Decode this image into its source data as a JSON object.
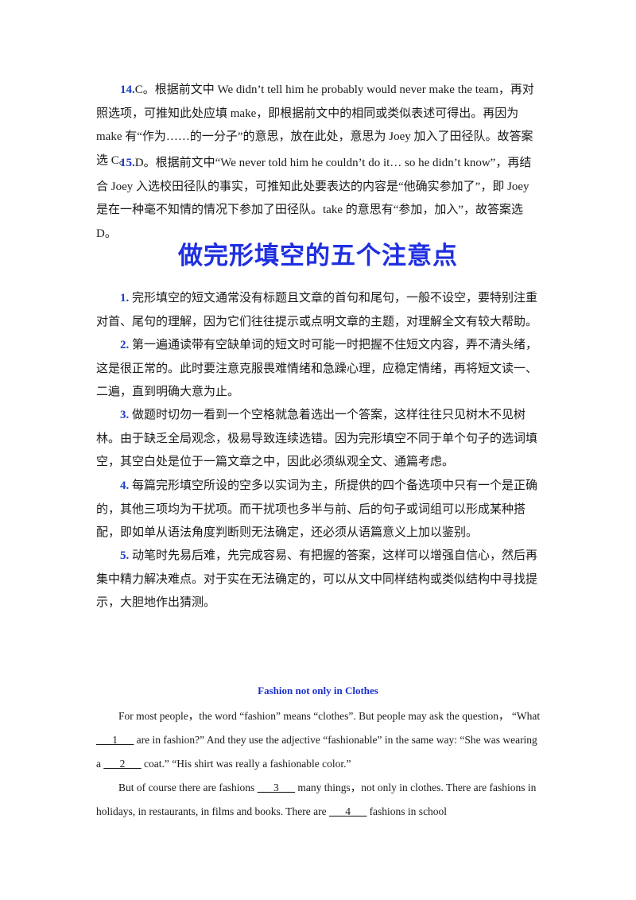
{
  "answers": [
    {
      "num": "14.",
      "text": "C。根据前文中 We didn’t tell him he probably would never make the team，再对照选项，可推知此处应填 make，即根据前文中的相同或类似表述可得出。再因为 make 有“作为……的一分子”的意思，放在此处，意思为 Joey 加入了田径队。故答案选 C。"
    },
    {
      "num": "15.",
      "text": "D。根据前文中“We never told him he couldn’t do it… so he didn’t know”，再结合 Joey 入选校田径队的事实，可推知此处要表达的内容是“他确实参加了”，即 Joey 是在一种毫不知情的情况下参加了田径队。take 的意思有“参加，加入”，故答案选 D。"
    }
  ],
  "heading": "做完形填空的五个注意点",
  "tips": [
    {
      "num": "1.",
      "text": "完形填空的短文通常没有标题且文章的首句和尾句，一般不设空，要特别注重对首、尾句的理解，因为它们往往提示或点明文章的主题，对理解全文有较大帮助。"
    },
    {
      "num": "2.",
      "text": "第一遍通读带有空缺单词的短文时可能一时把握不住短文内容，弄不清头绪，这是很正常的。此时要注意克服畏难情绪和急躁心理，应稳定情绪，再将短文读一、二遍，直到明确大意为止。"
    },
    {
      "num": "3.",
      "text": "做题时切勿一看到一个空格就急着选出一个答案，这样往往只见树木不见树林。由于缺乏全局观念，极易导致连续选错。因为完形填空不同于单个句子的选词填空，其空白处是位于一篇文章之中，因此必须纵观全文、通篇考虑。"
    },
    {
      "num": "4.",
      "text": "每篇完形填空所设的空多以实词为主，所提供的四个备选项中只有一个是正确的，其他三项均为干扰项。而干扰项也多半与前、后的句子或词组可以形成某种搭配，即如单从语法角度判断则无法确定，还必须从语篇意义上加以鉴别。"
    },
    {
      "num": "5.",
      "text": "动笔时先易后难，先完成容易、有把握的答案，这样可以增强自信心，然后再集中精力解决难点。对于实在无法确定的，可以从文中同样结构或类似结构中寻找提示，大胆地作出猜测。"
    }
  ],
  "passage": {
    "title": "Fashion not only in Clothes",
    "p1_a": "For most people，the word “fashion” means “clothes”. But people may ask the question，  “What ",
    "b1": "___1___",
    "p1_b": " are in fashion?” And they use the adjective “fashionable” in the same way: “She was wearing a ",
    "b2": "___2___",
    "p1_c": " coat.” “His shirt was really a fashionable color.”",
    "p2_a": "But of course there are fashions ",
    "b3": "___3___",
    "p2_b": " many things，not only in clothes. There are fashions in holidays, in restaurants, in films and books. There are ",
    "b4": "___4___",
    "p2_c": " fashions in school"
  }
}
